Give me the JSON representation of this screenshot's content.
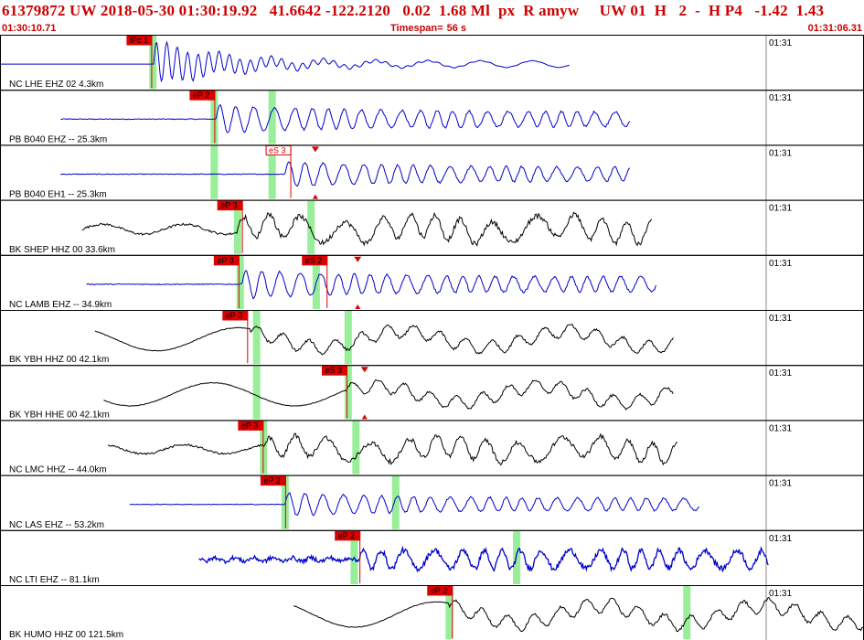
{
  "header": {
    "title": "61379872 UW 2018-05-30 01:30:19.92   41.6642 -122.2120   0.02  1.68 Ml  px  R amyw     UW 01  H   2  -  H P4   -1.42  1.43",
    "start_time": "01:30:10.71",
    "timespan_label": "Timespan=",
    "timespan_value": "56 s",
    "end_time": "01:31:06.31"
  },
  "colors": {
    "header_text": "#cc0000",
    "trace_blue": "#0000cc",
    "trace_black": "#000000",
    "pick_red": "#dd0000",
    "window_green": "#99ee99",
    "panel_border": "#000000"
  },
  "minute_tick_label": "01:31",
  "panels": [
    {
      "label": "NC LHE EHZ 02 4.3km",
      "color": "blue",
      "amp": 0.85,
      "start": 0.0,
      "end": 0.66,
      "onset": 0.178,
      "style": "local",
      "picks": [
        {
          "label": "iPc 1",
          "x": 0.147,
          "filled": true
        }
      ],
      "greens": [
        0.177
      ],
      "arrows": []
    },
    {
      "label": "PB B040 EHZ -- 25.3km",
      "color": "blue",
      "amp": 0.55,
      "start": 0.07,
      "end": 0.73,
      "onset": 0.25,
      "style": "mixed",
      "picks": [
        {
          "label": "eP 2",
          "x": 0.22,
          "filled": true
        }
      ],
      "greens": [
        0.248,
        0.315
      ],
      "arrows": []
    },
    {
      "label": "PB B040 EH1 -- 25.3km",
      "color": "blue",
      "amp": 0.5,
      "start": 0.07,
      "end": 0.73,
      "onset": 0.33,
      "style": "mixed",
      "picks": [
        {
          "label": "eS 3",
          "x": 0.308,
          "filled": false
        }
      ],
      "greens": [
        0.248,
        0.315
      ],
      "arrows": [
        {
          "x": 0.365,
          "up": false
        },
        {
          "x": 0.365,
          "up": true
        }
      ]
    },
    {
      "label": "BK SHEP HHZ 00 33.6km",
      "color": "black",
      "amp": 0.55,
      "start": 0.095,
      "end": 0.755,
      "onset": 0.275,
      "style": "broad",
      "picks": [
        {
          "label": "eP 3",
          "x": 0.252,
          "filled": true
        }
      ],
      "greens": [
        0.275,
        0.36
      ],
      "arrows": []
    },
    {
      "label": "NC LAMB EHZ -- 34.9km",
      "color": "blue",
      "amp": 0.55,
      "start": 0.1,
      "end": 0.76,
      "onset": 0.28,
      "style": "mixed",
      "picks": [
        {
          "label": "eP 3",
          "x": 0.248,
          "filled": true
        },
        {
          "label": "eS 2",
          "x": 0.35,
          "filled": true
        }
      ],
      "greens": [
        0.278,
        0.366
      ],
      "arrows": [
        {
          "x": 0.414,
          "up": false
        },
        {
          "x": 0.414,
          "up": true
        }
      ]
    },
    {
      "label": "BK YBH HHZ 00 42.1km",
      "color": "black",
      "amp": 0.5,
      "start": 0.11,
      "end": 0.78,
      "onset": 0.29,
      "style": "long",
      "picks": [
        {
          "label": "eP 3",
          "x": 0.258,
          "filled": true
        }
      ],
      "greens": [
        0.297,
        0.403
      ],
      "arrows": []
    },
    {
      "label": "BK YBH HHE 00 42.1km",
      "color": "black",
      "amp": 0.5,
      "start": 0.12,
      "end": 0.78,
      "onset": 0.4,
      "style": "long",
      "picks": [
        {
          "label": "eS 3",
          "x": 0.373,
          "filled": true
        }
      ],
      "greens": [
        0.297,
        0.403
      ],
      "arrows": [
        {
          "x": 0.422,
          "up": false
        },
        {
          "x": 0.422,
          "up": true
        }
      ]
    },
    {
      "label": "NC LMC HHZ -- 44.0km",
      "color": "black",
      "amp": 0.5,
      "start": 0.125,
      "end": 0.785,
      "onset": 0.305,
      "style": "broad",
      "picks": [
        {
          "label": "eP 3",
          "x": 0.276,
          "filled": true
        }
      ],
      "greens": [
        0.305,
        0.412
      ],
      "arrows": []
    },
    {
      "label": "NC LAS EHZ -- 53.2km",
      "color": "blue",
      "amp": 0.45,
      "start": 0.15,
      "end": 0.81,
      "onset": 0.33,
      "style": "mixed",
      "picks": [
        {
          "label": "eP 2",
          "x": 0.302,
          "filled": true
        }
      ],
      "greens": [
        0.33,
        0.458
      ],
      "arrows": []
    },
    {
      "label": "NC LTI EHZ -- 81.1km",
      "color": "blue",
      "amp": 0.45,
      "start": 0.23,
      "end": 0.89,
      "onset": 0.415,
      "style": "noisy",
      "picks": [
        {
          "label": "eP 2",
          "x": 0.388,
          "filled": true
        }
      ],
      "greens": [
        0.41,
        0.598
      ],
      "arrows": []
    },
    {
      "label": "BK HUMO HHZ 00 121.5km",
      "color": "black",
      "amp": 0.55,
      "start": 0.34,
      "end": 1.0,
      "onset": 0.52,
      "style": "long",
      "picks": [
        {
          "label": "eP 2",
          "x": 0.495,
          "filled": true
        }
      ],
      "greens": [
        0.52,
        0.795
      ],
      "arrows": []
    }
  ]
}
